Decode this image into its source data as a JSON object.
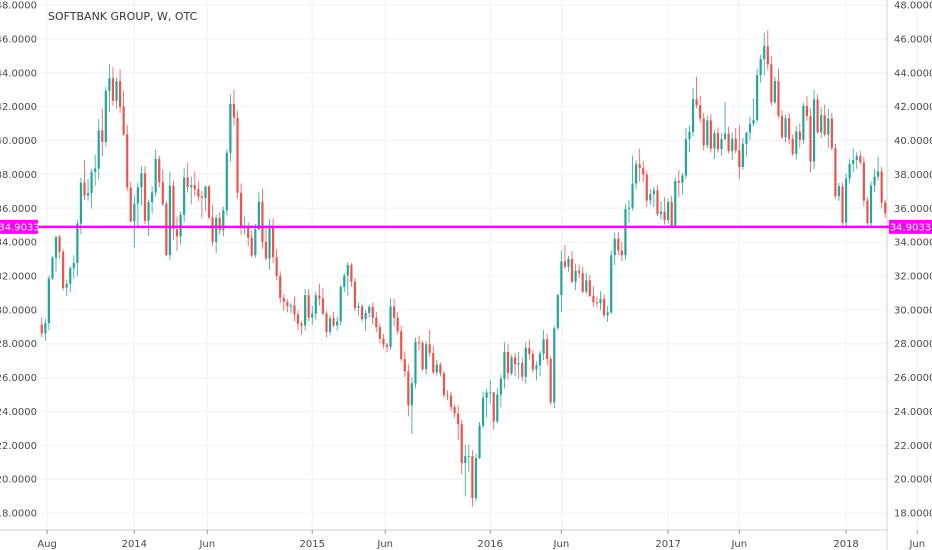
{
  "chart_data": {
    "type": "candlestick",
    "title": "SOFTBANK GROUP, W, OTC",
    "ylim": [
      17,
      48.3
    ],
    "y_ticks": [
      "18.0000",
      "20.0000",
      "22.0000",
      "24.0000",
      "26.0000",
      "28.0000",
      "30.0000",
      "32.0000",
      "34.0000",
      "36.0000",
      "38.0000",
      "40.0000",
      "42.0000",
      "44.0000",
      "46.0000",
      "48.0000"
    ],
    "x_ticks": [
      "Aug",
      "2014",
      "Jun",
      "2015",
      "Jun",
      "2016",
      "Jun",
      "2017",
      "Jun",
      "2018",
      "Jun"
    ],
    "x_tick_index": [
      1.5,
      26,
      46.5,
      76,
      96.5,
      126,
      146,
      176,
      196,
      226,
      246
    ],
    "grid": true,
    "horizontal_line": {
      "value": 34.9033,
      "label": "34.9033",
      "color": "#ff00ff"
    },
    "colors": {
      "up": "#26a69a",
      "down": "#ef5350",
      "grid": "#eef0f3",
      "axis": "#d0d0d0"
    },
    "candles": [
      [
        29.13,
        29.56,
        28.4,
        28.61
      ],
      [
        28.61,
        29.48,
        28.2,
        29.22
      ],
      [
        29.22,
        32.02,
        28.79,
        31.85
      ],
      [
        31.85,
        33.19,
        31.77,
        33.08
      ],
      [
        33.08,
        34.32,
        32.28,
        34.32
      ],
      [
        34.32,
        34.43,
        33.05,
        33.43
      ],
      [
        33.43,
        33.58,
        31.15,
        31.3
      ],
      [
        31.3,
        31.8,
        30.83,
        31.54
      ],
      [
        31.54,
        32.58,
        31.05,
        32.46
      ],
      [
        32.46,
        33.23,
        31.84,
        32.77
      ],
      [
        32.77,
        35.33,
        31.99,
        35.1
      ],
      [
        35.1,
        37.8,
        34.48,
        37.51
      ],
      [
        37.51,
        38.83,
        36.49,
        36.75
      ],
      [
        36.75,
        37.74,
        36.43,
        36.9
      ],
      [
        36.9,
        38.32,
        35.99,
        38.14
      ],
      [
        38.14,
        39.16,
        37.33,
        38.35
      ],
      [
        38.35,
        41.27,
        37.71,
        40.6
      ],
      [
        40.6,
        41.9,
        39.09,
        39.92
      ],
      [
        39.92,
        43.19,
        39.64,
        42.93
      ],
      [
        42.93,
        44.48,
        41.7,
        43.68
      ],
      [
        43.68,
        44.35,
        42.07,
        42.35
      ],
      [
        42.35,
        43.72,
        41.89,
        43.5
      ],
      [
        43.5,
        44.23,
        41.62,
        42.0
      ],
      [
        42.0,
        42.92,
        40.28,
        40.37
      ],
      [
        40.37,
        40.92,
        37.03,
        37.23
      ],
      [
        37.23,
        37.55,
        35.15,
        35.22
      ],
      [
        35.22,
        36.77,
        33.7,
        36.27
      ],
      [
        36.27,
        37.51,
        34.82,
        37.24
      ],
      [
        37.24,
        38.48,
        36.17,
        38.07
      ],
      [
        38.07,
        38.49,
        35.06,
        35.26
      ],
      [
        35.26,
        36.51,
        34.37,
        36.37
      ],
      [
        36.37,
        37.29,
        35.67,
        36.93
      ],
      [
        36.93,
        39.46,
        36.68,
        38.92
      ],
      [
        38.92,
        39.11,
        37.21,
        37.53
      ],
      [
        37.53,
        38.29,
        36.13,
        36.26
      ],
      [
        36.26,
        36.45,
        33.17,
        33.24
      ],
      [
        33.24,
        38.15,
        32.96,
        37.33
      ],
      [
        37.33,
        37.65,
        34.14,
        34.77
      ],
      [
        34.77,
        35.52,
        33.46,
        34.34
      ],
      [
        34.34,
        35.79,
        33.85,
        35.61
      ],
      [
        35.61,
        38.36,
        35.18,
        37.81
      ],
      [
        37.81,
        38.71,
        36.92,
        37.25
      ],
      [
        37.25,
        37.87,
        36.23,
        37.37
      ],
      [
        37.37,
        38.19,
        36.72,
        37.12
      ],
      [
        37.12,
        37.6,
        36.42,
        36.69
      ],
      [
        36.69,
        37.03,
        35.4,
        36.61
      ],
      [
        36.61,
        37.32,
        35.84,
        37.29
      ],
      [
        37.29,
        37.37,
        35.33,
        35.46
      ],
      [
        35.46,
        36.22,
        33.78,
        34.02
      ],
      [
        34.02,
        35.6,
        33.36,
        35.42
      ],
      [
        35.42,
        35.78,
        34.44,
        34.7
      ],
      [
        34.7,
        36.11,
        34.35,
        35.88
      ],
      [
        35.88,
        39.49,
        35.6,
        39.28
      ],
      [
        39.28,
        42.71,
        38.74,
        42.16
      ],
      [
        42.16,
        43.02,
        40.88,
        41.35
      ],
      [
        41.35,
        41.76,
        36.58,
        36.91
      ],
      [
        36.91,
        37.47,
        34.41,
        34.84
      ],
      [
        34.84,
        35.51,
        34.45,
        34.86
      ],
      [
        34.86,
        35.17,
        33.74,
        34.27
      ],
      [
        34.27,
        34.69,
        33.09,
        33.23
      ],
      [
        33.23,
        35.07,
        33.08,
        34.76
      ],
      [
        34.76,
        36.94,
        34.69,
        36.38
      ],
      [
        36.38,
        37.15,
        33.61,
        34.01
      ],
      [
        34.01,
        34.91,
        32.93,
        33.03
      ],
      [
        33.03,
        35.36,
        32.38,
        34.97
      ],
      [
        34.97,
        35.41,
        32.75,
        33.11
      ],
      [
        33.11,
        33.6,
        31.74,
        32.01
      ],
      [
        32.01,
        32.28,
        30.4,
        30.7
      ],
      [
        30.7,
        30.92,
        29.93,
        30.47
      ],
      [
        30.47,
        30.63,
        29.85,
        30.22
      ],
      [
        30.22,
        30.4,
        29.79,
        30.26
      ],
      [
        30.26,
        30.78,
        29.34,
        29.73
      ],
      [
        29.73,
        29.96,
        28.8,
        29.19
      ],
      [
        29.19,
        29.32,
        28.52,
        29.08
      ],
      [
        29.08,
        31.22,
        28.78,
        30.87
      ],
      [
        30.87,
        31.23,
        29.32,
        29.55
      ],
      [
        29.55,
        30.22,
        29.13,
        29.78
      ],
      [
        29.78,
        31.07,
        29.42,
        30.86
      ],
      [
        30.86,
        31.55,
        30.26,
        30.67
      ],
      [
        30.67,
        31.31,
        29.66,
        29.79
      ],
      [
        29.79,
        29.95,
        28.39,
        28.7
      ],
      [
        28.7,
        29.69,
        28.51,
        29.5
      ],
      [
        29.5,
        29.88,
        28.98,
        29.08
      ],
      [
        29.08,
        29.58,
        28.78,
        29.32
      ],
      [
        29.32,
        31.5,
        29.08,
        31.35
      ],
      [
        31.35,
        32.16,
        31.04,
        32.03
      ],
      [
        32.03,
        32.82,
        30.81,
        32.64
      ],
      [
        32.64,
        32.78,
        31.37,
        31.66
      ],
      [
        31.66,
        31.88,
        29.94,
        30.12
      ],
      [
        30.12,
        30.42,
        29.65,
        30.21
      ],
      [
        30.21,
        30.34,
        29.3,
        29.45
      ],
      [
        29.45,
        29.98,
        28.75,
        29.82
      ],
      [
        29.82,
        30.3,
        29.57,
        30.18
      ],
      [
        30.18,
        30.43,
        29.14,
        29.53
      ],
      [
        29.53,
        29.88,
        28.68,
        28.98
      ],
      [
        28.98,
        29.2,
        28.03,
        28.3
      ],
      [
        28.3,
        28.57,
        27.72,
        27.95
      ],
      [
        27.95,
        28.06,
        27.48,
        27.82
      ],
      [
        27.82,
        30.69,
        27.64,
        30.2
      ],
      [
        30.2,
        30.64,
        29.05,
        29.54
      ],
      [
        29.54,
        29.86,
        28.55,
        28.74
      ],
      [
        28.74,
        29.04,
        26.97,
        27.1
      ],
      [
        27.1,
        27.56,
        26.05,
        26.37
      ],
      [
        26.37,
        26.78,
        23.7,
        24.37
      ],
      [
        24.37,
        26.0,
        22.66,
        25.66
      ],
      [
        25.66,
        28.36,
        25.36,
        28.1
      ],
      [
        28.1,
        28.49,
        27.6,
        28.06
      ],
      [
        28.06,
        28.18,
        26.38,
        26.5
      ],
      [
        26.5,
        28.16,
        26.19,
        27.96
      ],
      [
        27.96,
        28.84,
        27.21,
        27.46
      ],
      [
        27.46,
        27.88,
        26.2,
        26.31
      ],
      [
        26.31,
        27.05,
        26.13,
        26.77
      ],
      [
        26.77,
        26.9,
        26.06,
        26.25
      ],
      [
        26.25,
        26.38,
        24.79,
        24.98
      ],
      [
        24.98,
        25.25,
        24.66,
        24.94
      ],
      [
        24.94,
        25.18,
        24.01,
        24.27
      ],
      [
        24.27,
        24.42,
        23.64,
        23.88
      ],
      [
        23.88,
        24.35,
        22.32,
        23.25
      ],
      [
        23.25,
        23.5,
        20.3,
        20.95
      ],
      [
        20.95,
        22.04,
        18.99,
        21.36
      ],
      [
        21.36,
        22.05,
        20.44,
        21.36
      ],
      [
        21.36,
        21.71,
        18.39,
        18.89
      ],
      [
        18.89,
        21.5,
        18.69,
        21.25
      ],
      [
        21.25,
        23.37,
        21.19,
        23.16
      ],
      [
        23.16,
        25.18,
        23.0,
        24.8
      ],
      [
        24.8,
        25.35,
        23.63,
        25.12
      ],
      [
        25.12,
        25.88,
        24.46,
        25.13
      ],
      [
        25.13,
        25.18,
        22.92,
        23.41
      ],
      [
        23.41,
        25.39,
        23.3,
        25.0
      ],
      [
        25.0,
        26.18,
        24.26,
        25.93
      ],
      [
        25.93,
        28.08,
        25.34,
        27.51
      ],
      [
        27.51,
        27.97,
        25.89,
        26.26
      ],
      [
        26.26,
        27.35,
        26.13,
        27.19
      ],
      [
        27.19,
        27.47,
        26.09,
        26.79
      ],
      [
        26.79,
        27.52,
        25.94,
        26.86
      ],
      [
        26.86,
        27.19,
        25.8,
        26.05
      ],
      [
        26.05,
        28.08,
        25.64,
        27.76
      ],
      [
        27.76,
        28.25,
        27.06,
        27.4
      ],
      [
        27.4,
        27.63,
        26.3,
        26.49
      ],
      [
        26.49,
        26.96,
        25.84,
        26.73
      ],
      [
        26.73,
        27.58,
        26.08,
        27.42
      ],
      [
        27.42,
        28.81,
        27.03,
        28.27
      ],
      [
        28.27,
        28.58,
        26.72,
        27.1
      ],
      [
        27.1,
        27.26,
        24.38,
        24.54
      ],
      [
        24.54,
        29.06,
        24.2,
        28.91
      ],
      [
        28.91,
        30.94,
        28.83,
        30.87
      ],
      [
        30.87,
        33.51,
        29.87,
        32.86
      ],
      [
        32.86,
        33.83,
        32.41,
        32.55
      ],
      [
        32.55,
        33.19,
        32.25,
        33.01
      ],
      [
        33.01,
        33.47,
        31.57,
        31.66
      ],
      [
        31.66,
        32.73,
        31.16,
        32.31
      ],
      [
        32.31,
        32.66,
        31.88,
        32.17
      ],
      [
        32.17,
        32.54,
        30.98,
        31.07
      ],
      [
        31.07,
        32.2,
        30.93,
        31.74
      ],
      [
        31.74,
        32.06,
        30.73,
        30.83
      ],
      [
        30.83,
        31.39,
        30.19,
        30.45
      ],
      [
        30.45,
        30.77,
        30.15,
        30.39
      ],
      [
        30.39,
        31.11,
        29.98,
        30.65
      ],
      [
        30.65,
        30.92,
        29.53,
        29.68
      ],
      [
        29.68,
        30.22,
        29.29,
        29.84
      ],
      [
        29.84,
        33.53,
        29.76,
        33.23
      ],
      [
        33.23,
        34.57,
        32.65,
        34.21
      ],
      [
        34.21,
        34.6,
        33.24,
        33.5
      ],
      [
        33.5,
        34.04,
        32.89,
        33.23
      ],
      [
        33.23,
        36.24,
        32.94,
        35.96
      ],
      [
        35.96,
        36.51,
        35.15,
        36.04
      ],
      [
        36.04,
        39.12,
        35.87,
        37.46
      ],
      [
        37.46,
        38.85,
        37.11,
        38.6
      ],
      [
        38.6,
        39.51,
        37.57,
        38.37
      ],
      [
        38.37,
        38.79,
        37.54,
        37.99
      ],
      [
        37.99,
        38.21,
        36.08,
        36.46
      ],
      [
        36.46,
        37.15,
        36.2,
        36.83
      ],
      [
        36.83,
        37.27,
        36.09,
        37.05
      ],
      [
        37.05,
        37.35,
        35.54,
        35.65
      ],
      [
        35.65,
        36.42,
        35.36,
        35.8
      ],
      [
        35.8,
        36.66,
        35.04,
        35.3
      ],
      [
        35.3,
        36.54,
        35.09,
        36.37
      ],
      [
        36.37,
        36.74,
        34.83,
        34.98
      ],
      [
        34.98,
        37.83,
        34.89,
        37.62
      ],
      [
        37.62,
        38.25,
        36.67,
        37.51
      ],
      [
        37.51,
        38.08,
        36.79,
        37.94
      ],
      [
        37.94,
        40.73,
        37.76,
        40.08
      ],
      [
        40.08,
        40.89,
        39.32,
        40.52
      ],
      [
        40.52,
        43.09,
        40.24,
        42.44
      ],
      [
        42.44,
        43.77,
        41.9,
        42.09
      ],
      [
        42.09,
        42.64,
        41.05,
        41.3
      ],
      [
        41.3,
        41.62,
        39.43,
        39.72
      ],
      [
        39.72,
        41.47,
        39.54,
        41.19
      ],
      [
        41.19,
        41.54,
        39.28,
        39.53
      ],
      [
        39.53,
        40.63,
        38.91,
        40.44
      ],
      [
        40.44,
        40.78,
        39.29,
        39.49
      ],
      [
        39.49,
        40.43,
        39.12,
        40.09
      ],
      [
        40.09,
        42.27,
        40.0,
        40.39
      ],
      [
        40.39,
        40.82,
        39.24,
        39.39
      ],
      [
        39.39,
        40.47,
        38.84,
        40.11
      ],
      [
        40.11,
        40.74,
        39.25,
        39.42
      ],
      [
        39.42,
        40.9,
        37.72,
        38.44
      ],
      [
        38.44,
        40.17,
        38.29,
        39.81
      ],
      [
        39.81,
        40.52,
        39.05,
        40.46
      ],
      [
        40.46,
        41.4,
        40.0,
        40.99
      ],
      [
        40.99,
        42.48,
        40.85,
        41.21
      ],
      [
        41.21,
        44.21,
        41.07,
        43.87
      ],
      [
        43.87,
        45.06,
        43.41,
        44.81
      ],
      [
        44.81,
        46.38,
        43.86,
        45.57
      ],
      [
        45.57,
        46.52,
        44.17,
        44.5
      ],
      [
        44.5,
        44.98,
        42.07,
        42.26
      ],
      [
        42.26,
        43.75,
        42.15,
        43.51
      ],
      [
        43.51,
        44.25,
        41.31,
        41.46
      ],
      [
        41.46,
        41.79,
        40.09,
        40.2
      ],
      [
        40.2,
        41.54,
        39.88,
        41.32
      ],
      [
        41.32,
        41.62,
        39.78,
        40.11
      ],
      [
        40.11,
        40.37,
        39.07,
        39.21
      ],
      [
        39.21,
        40.85,
        38.86,
        40.53
      ],
      [
        40.53,
        41.01,
        39.58,
        40.04
      ],
      [
        40.04,
        42.22,
        39.82,
        42.05
      ],
      [
        42.05,
        42.61,
        41.16,
        41.44
      ],
      [
        41.44,
        41.9,
        38.11,
        38.76
      ],
      [
        38.76,
        43.02,
        38.31,
        42.43
      ],
      [
        42.43,
        42.72,
        40.38,
        40.49
      ],
      [
        40.49,
        41.98,
        40.16,
        41.5
      ],
      [
        41.5,
        42.11,
        40.24,
        40.35
      ],
      [
        40.35,
        41.88,
        39.54,
        41.3
      ],
      [
        41.3,
        41.64,
        39.42,
        39.55
      ],
      [
        39.55,
        39.82,
        36.56,
        36.72
      ],
      [
        36.72,
        37.49,
        36.43,
        37.3
      ],
      [
        37.3,
        37.53,
        35.01,
        35.16
      ],
      [
        35.16,
        38.03,
        34.89,
        37.76
      ],
      [
        37.76,
        38.92,
        37.46,
        38.61
      ],
      [
        38.61,
        39.53,
        38.11,
        38.85
      ],
      [
        38.85,
        39.31,
        38.33,
        39.09
      ],
      [
        39.09,
        39.38,
        38.57,
        38.71
      ],
      [
        38.71,
        39.03,
        36.12,
        36.46
      ],
      [
        36.46,
        36.65,
        35.01,
        35.12
      ],
      [
        35.12,
        37.59,
        34.82,
        37.35
      ],
      [
        37.35,
        38.3,
        36.95,
        37.87
      ],
      [
        37.87,
        39.06,
        37.63,
        38.18
      ],
      [
        38.18,
        38.43,
        36.0,
        36.34
      ],
      [
        36.34,
        36.51,
        35.43,
        35.71
      ]
    ]
  }
}
